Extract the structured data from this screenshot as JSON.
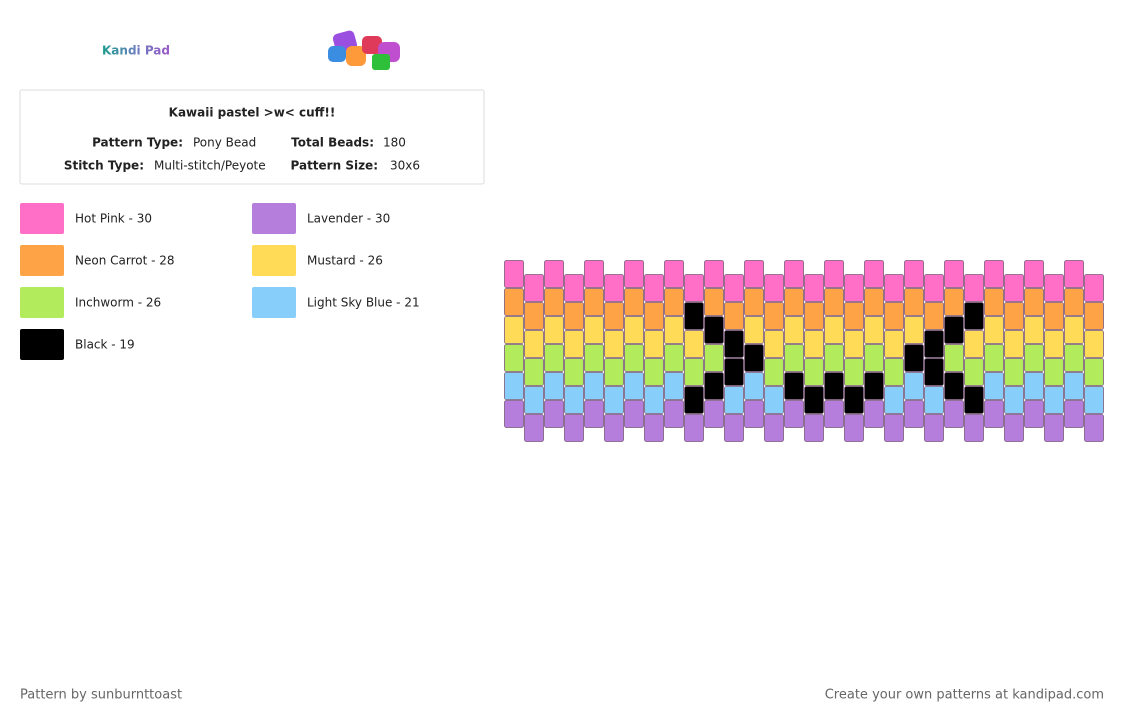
{
  "logo": "Kandi Pad",
  "pattern": {
    "title": "Kawaii pastel >w< cuff!!",
    "fields": [
      {
        "label": "Pattern Type:",
        "value": "Pony Bead"
      },
      {
        "label": "Total Beads:",
        "value": "180"
      },
      {
        "label": "Stitch Type:",
        "value": "Multi-stitch/Peyote"
      },
      {
        "label": "Pattern Size:",
        "value": "30x6"
      }
    ]
  },
  "legend": [
    {
      "label": "Hot Pink - 30",
      "color": "#ff6ec7"
    },
    {
      "label": "Neon Carrot - 28",
      "color": "#ffa347"
    },
    {
      "label": "Inchworm - 26",
      "color": "#b2ec5d"
    },
    {
      "label": "Black - 19",
      "color": "#000000"
    },
    {
      "label": "Lavender - 30",
      "color": "#b57edc"
    },
    {
      "label": "Mustard - 26",
      "color": "#ffdb58"
    },
    {
      "label": "Light Sky Blue - 21",
      "color": "#87cefa"
    }
  ],
  "grid": [
    "000000000000000000000000000000",
    "111111111311111111111113111111",
    "555555555533555555555335555555",
    "222222222223322222223322222222",
    "666666666336663333366633666666",
    "444444444444444444444444444444"
  ],
  "footer": {
    "credit": "Pattern by sunburnttoast",
    "promo": "Create your own patterns at kandipad.com"
  }
}
